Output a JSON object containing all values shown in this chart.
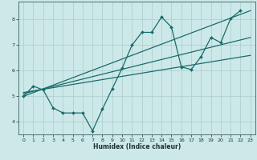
{
  "xlabel": "Humidex (Indice chaleur)",
  "bg_color": "#cce8e8",
  "grid_color": "#aacccc",
  "line_color": "#1a6b6b",
  "xlim": [
    -0.5,
    23.5
  ],
  "ylim": [
    3.5,
    8.7
  ],
  "xticks": [
    0,
    1,
    2,
    3,
    4,
    5,
    6,
    7,
    8,
    9,
    10,
    11,
    12,
    13,
    14,
    15,
    16,
    17,
    18,
    19,
    20,
    21,
    22,
    23
  ],
  "yticks": [
    4,
    5,
    6,
    7,
    8
  ],
  "wavy_x": [
    0,
    1,
    2,
    3,
    4,
    5,
    6,
    7,
    8,
    9,
    10,
    11,
    12,
    13,
    14,
    15,
    16,
    17,
    18,
    19,
    20,
    21,
    22
  ],
  "wavy_y": [
    5.0,
    5.4,
    5.25,
    4.55,
    4.35,
    4.35,
    4.35,
    3.65,
    4.5,
    5.3,
    6.1,
    7.0,
    7.5,
    7.5,
    8.1,
    7.7,
    6.15,
    6.05,
    6.55,
    7.3,
    7.1,
    8.05,
    8.35
  ],
  "trend1_x": [
    0,
    23
  ],
  "trend1_y": [
    5.0,
    8.35
  ],
  "trend2_x": [
    0,
    23
  ],
  "trend2_y": [
    5.1,
    7.3
  ],
  "trend3_x": [
    0,
    23
  ],
  "trend3_y": [
    5.15,
    6.6
  ]
}
